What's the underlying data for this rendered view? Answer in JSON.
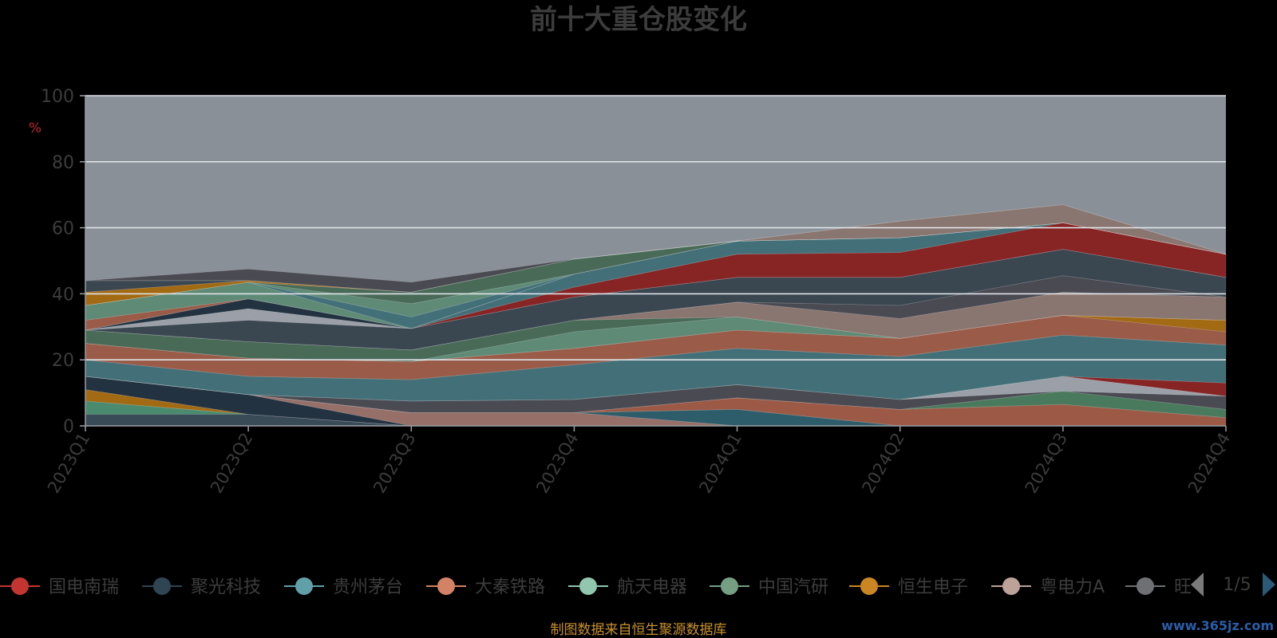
{
  "chart_data": {
    "type": "area",
    "title": "前十大重仓股变化",
    "ylabel": "%",
    "ylim": [
      0,
      100
    ],
    "yticks": [
      0,
      20,
      40,
      60,
      80,
      100
    ],
    "categories": [
      "2023Q1",
      "2023Q2",
      "2023Q3",
      "2023Q4",
      "2024Q1",
      "2024Q2",
      "2024Q3",
      "2024Q4"
    ],
    "series": [
      {
        "color": "#3a4b58",
        "values": [
          3.5,
          3.5,
          0,
          0,
          0,
          0,
          0,
          0
        ]
      },
      {
        "color": "#4a8a6e",
        "values": [
          4,
          0,
          0,
          0,
          0,
          0,
          0,
          0
        ]
      },
      {
        "color": "#a36a14",
        "values": [
          3.5,
          0,
          0,
          0,
          0,
          0,
          0,
          0
        ]
      },
      {
        "color": "#223240",
        "values": [
          4,
          6,
          0,
          0,
          0,
          0,
          0,
          0
        ]
      },
      {
        "color": "#966f68",
        "values": [
          0,
          0,
          4,
          4,
          0,
          0,
          0,
          0
        ]
      },
      {
        "color": "#2d5d6a",
        "values": [
          0,
          0,
          0,
          0,
          5,
          0,
          0,
          0
        ]
      },
      {
        "color": "#9c5a46",
        "values": [
          0,
          0,
          0,
          0,
          3.5,
          5,
          6.5,
          2.5
        ]
      },
      {
        "color": "#4a7a5e",
        "values": [
          0,
          0,
          0,
          0,
          0,
          0,
          4,
          2.5
        ]
      },
      {
        "color": "#4a4a52",
        "values": [
          0,
          0,
          3.5,
          4,
          4,
          3,
          0,
          4
        ]
      },
      {
        "color": "#9ba0a8",
        "values": [
          0,
          0,
          0,
          0,
          0,
          0,
          4.5,
          0
        ]
      },
      {
        "color": "#872424",
        "values": [
          0,
          0,
          0,
          0,
          0,
          0,
          0,
          4
        ]
      },
      {
        "color": "#437078",
        "values": [
          5,
          5.5,
          6.5,
          10.5,
          11,
          13,
          12.5,
          11.5
        ]
      },
      {
        "color": "#9a5c48",
        "values": [
          5,
          5.5,
          5.5,
          5,
          5.5,
          5.5,
          6,
          4
        ]
      },
      {
        "color": "#a36a14",
        "values": [
          0,
          0,
          0,
          0,
          0,
          0,
          0,
          3.5
        ]
      },
      {
        "color": "#5e8a76",
        "values": [
          0,
          0,
          0,
          5,
          4,
          0,
          0,
          0
        ]
      },
      {
        "color": "#4a6a58",
        "values": [
          4,
          5,
          3.5,
          3.5,
          0,
          0,
          0,
          0
        ]
      },
      {
        "color": "#8a7670",
        "values": [
          0,
          0,
          0,
          0,
          4.5,
          6,
          7,
          7
        ]
      },
      {
        "color": "#4a4a52",
        "values": [
          0,
          0,
          0,
          0,
          0,
          4,
          5,
          0
        ]
      },
      {
        "color": "#3a4650",
        "values": [
          0,
          6.5,
          6.5,
          7,
          7.5,
          8.5,
          8,
          6
        ]
      },
      {
        "color": "#9ba0a8",
        "values": [
          0,
          3.5,
          0,
          0,
          0,
          0,
          0,
          0
        ]
      },
      {
        "color": "#223240",
        "values": [
          0,
          3,
          0,
          0,
          0,
          0,
          0,
          0
        ]
      },
      {
        "color": "#872424",
        "values": [
          0,
          0,
          0,
          3,
          7,
          7.5,
          8,
          7
        ]
      },
      {
        "color": "#437078",
        "values": [
          0,
          0,
          0,
          4,
          4,
          4.5,
          0,
          0
        ]
      },
      {
        "color": "#9a5c48",
        "values": [
          3,
          0,
          0,
          0,
          0,
          0,
          0,
          0
        ]
      },
      {
        "color": "#5e8a76",
        "values": [
          4.5,
          5,
          0,
          0,
          0,
          0,
          0,
          0
        ]
      },
      {
        "color": "#437078",
        "values": [
          0,
          0,
          3.5,
          0,
          0,
          0,
          0,
          0
        ]
      },
      {
        "color": "#5e8a76",
        "values": [
          0,
          0,
          4,
          0,
          0,
          0,
          0,
          0
        ]
      },
      {
        "color": "#4a6a58",
        "values": [
          0,
          0,
          3.5,
          4.5,
          0,
          0,
          0,
          0
        ]
      },
      {
        "color": "#a36a14",
        "values": [
          4,
          0.5,
          0,
          0,
          0,
          0,
          0,
          0
        ]
      },
      {
        "color": "#3a4650",
        "values": [
          3.5,
          0,
          0,
          0,
          0,
          0,
          0,
          0
        ]
      },
      {
        "color": "#8a7670",
        "values": [
          0,
          0,
          0,
          0,
          0,
          5,
          5.5,
          0
        ]
      },
      {
        "color": "#4a4a52",
        "values": [
          0,
          3.5,
          3,
          0,
          0,
          0,
          0,
          0
        ]
      }
    ],
    "legend": [
      {
        "name": "国电南瑞",
        "color": "#c23531"
      },
      {
        "name": "聚光科技",
        "color": "#2f4554"
      },
      {
        "name": "贵州茅台",
        "color": "#61a0a8"
      },
      {
        "name": "大秦铁路",
        "color": "#d48265"
      },
      {
        "name": "航天电器",
        "color": "#91c7ae"
      },
      {
        "name": "中国汽研",
        "color": "#749f83"
      },
      {
        "name": "恒生电子",
        "color": "#ca8622"
      },
      {
        "name": "粤电力A",
        "color": "#bda29a"
      },
      {
        "name": "旺",
        "color": "#6e7074"
      }
    ],
    "legend_page": "1/5",
    "source": "制图数据来自恒生聚源数据库",
    "watermark": "www.365jz.com",
    "background": "#000000",
    "plot_background": "#8a9098",
    "grid": true,
    "legend_position": "bottom"
  }
}
